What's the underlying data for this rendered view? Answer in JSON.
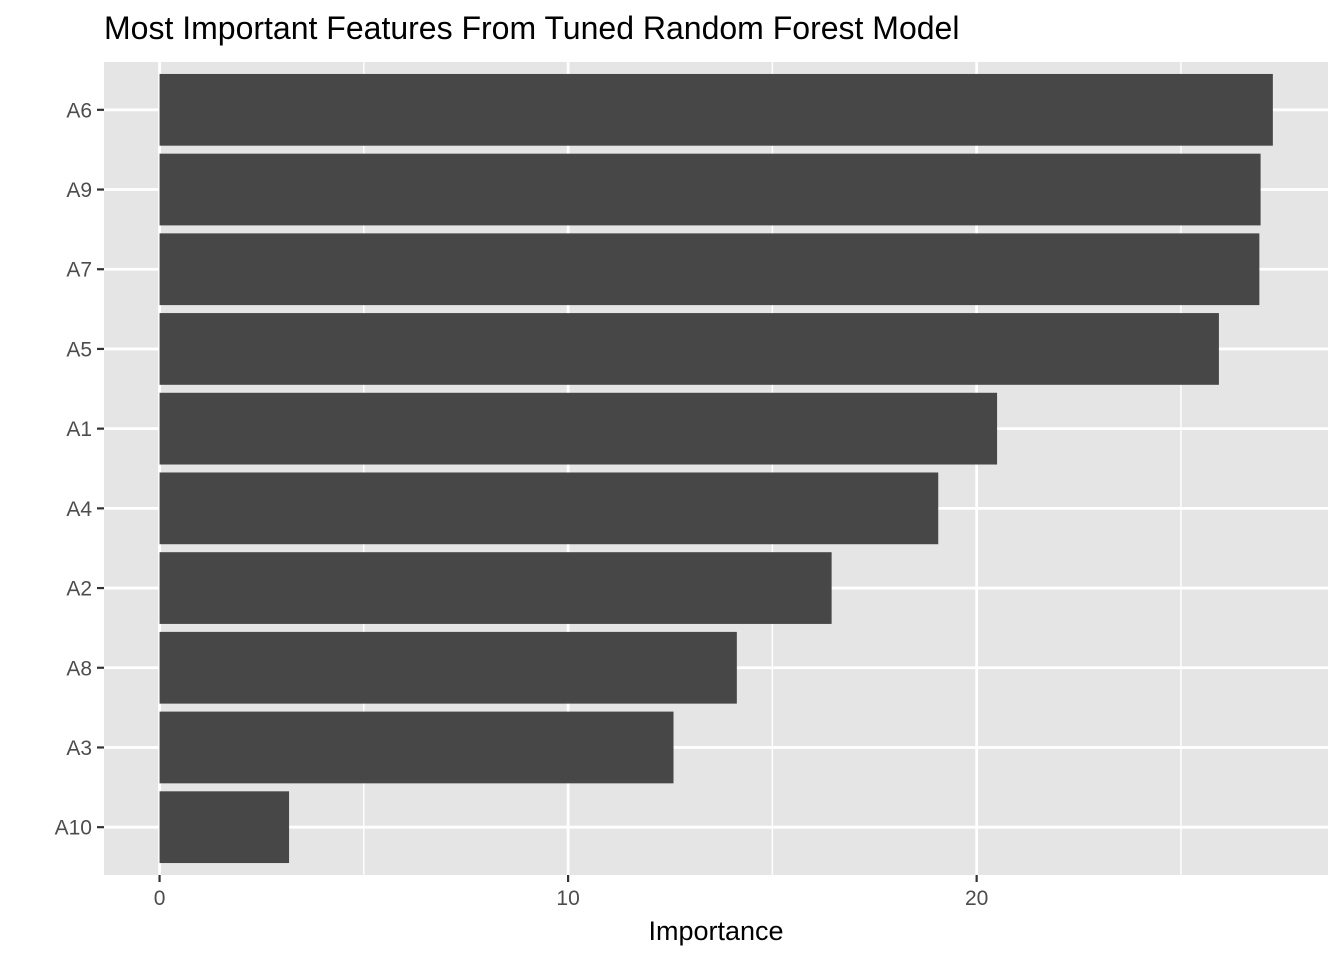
{
  "chart_data": {
    "type": "bar",
    "orientation": "horizontal",
    "title": "Most Important Features From Tuned Random Forest Model",
    "xlabel": "Importance",
    "ylabel": "",
    "categories": [
      "A6",
      "A9",
      "A7",
      "A5",
      "A1",
      "A4",
      "A2",
      "A8",
      "A3",
      "A10"
    ],
    "values": [
      27.25,
      26.95,
      26.92,
      25.93,
      20.5,
      19.06,
      16.45,
      14.13,
      12.58,
      3.17
    ],
    "xlim": [
      -1.36,
      28.6
    ],
    "x_ticks": [
      0,
      10,
      20
    ],
    "x_minor": [
      5,
      15,
      25
    ],
    "grid": true,
    "legend": "none",
    "colors": {
      "bar": "#474747",
      "panel": "#e5e5e5",
      "grid": "#ffffff",
      "tick": "#333333"
    }
  }
}
